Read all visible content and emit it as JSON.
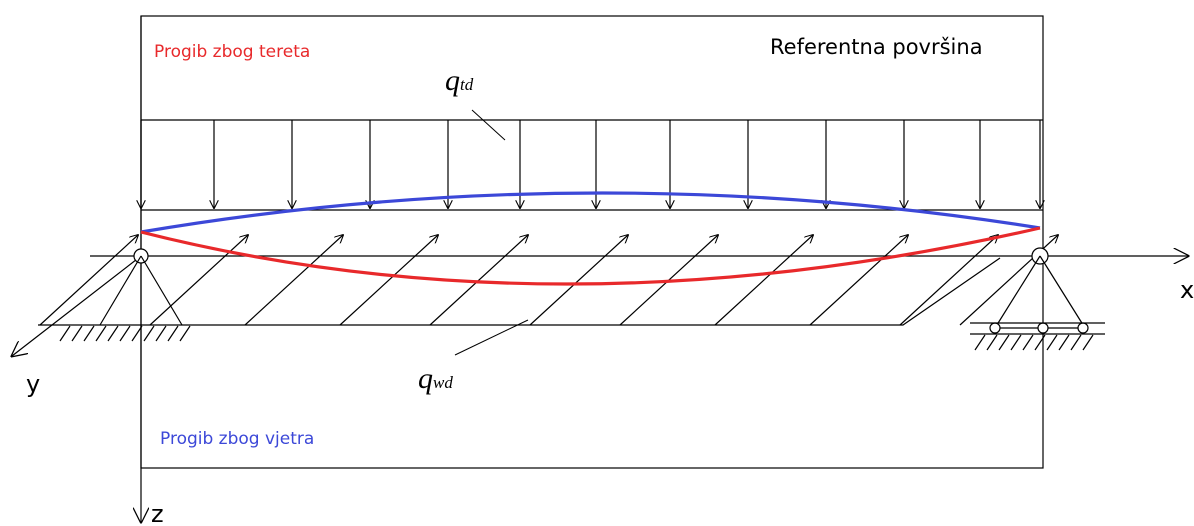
{
  "labels": {
    "load_deflection": "Progib zbog tereta",
    "wind_deflection": "Progib zbog vjetra",
    "reference_surface": "Referentna površina",
    "q_td_main": "q",
    "q_td_sub": "td",
    "q_wd_main": "q",
    "q_wd_sub": "wd"
  },
  "axes": {
    "x": "x",
    "y": "y",
    "z": "z"
  },
  "colors": {
    "load_deflection": "#e8292b",
    "wind_deflection": "#3c48d8",
    "lines": "#000000"
  }
}
